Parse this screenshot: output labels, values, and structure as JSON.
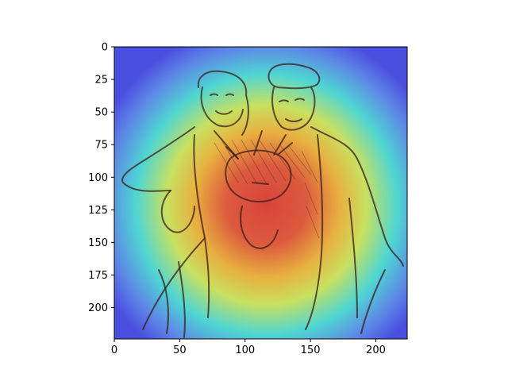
{
  "chart_data": {
    "type": "heatmap",
    "title": "",
    "xlabel": "",
    "ylabel": "",
    "description_visual": "heatmap overlaid on sketch image",
    "image_size": [
      224,
      224
    ],
    "xlim": [
      0,
      224
    ],
    "ylim": [
      224,
      0
    ],
    "x_ticks": [
      0,
      50,
      100,
      150,
      200
    ],
    "y_ticks": [
      0,
      25,
      50,
      75,
      100,
      125,
      150,
      175,
      200
    ],
    "colormap": "jet",
    "hotspot_center": [
      115,
      120
    ],
    "colors": {
      "low": "#4b4fe0",
      "mid_low": "#4fd6d2",
      "mid": "#c8e060",
      "mid_high": "#e8b040",
      "high": "#d8443a",
      "sketch": "#3a1f1a",
      "axis": "#000000"
    }
  }
}
